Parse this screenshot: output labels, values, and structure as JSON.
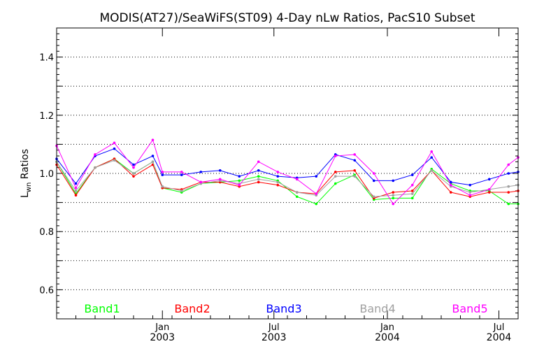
{
  "chart_data": {
    "type": "line",
    "title": "MODIS(AT27)/SeaWiFS(ST09) 4-Day nLw Ratios, PacS10 Subset",
    "ylabel_main": "L",
    "ylabel_sub": "wn",
    "ylabel_rest": " Ratios",
    "xlabel": "",
    "ylim": [
      0.5,
      1.5
    ],
    "yticks": [
      0.6,
      0.8,
      1.0,
      1.2,
      1.4
    ],
    "ytick_labels": [
      "0.6",
      "0.8",
      "1.0",
      "1.2",
      "1.4"
    ],
    "xlim": [
      0,
      24
    ],
    "xticks": [
      {
        "x": 5.5,
        "month": "Jan",
        "year": "2003"
      },
      {
        "x": 11.3,
        "month": "Jul",
        "year": "2003"
      },
      {
        "x": 17.2,
        "month": "Jan",
        "year": "2004"
      },
      {
        "x": 23.0,
        "month": "Jul",
        "year": "2004"
      }
    ],
    "grid": true,
    "legend_position": "bottom",
    "x": [
      0,
      1,
      2,
      3,
      4,
      5,
      5.5,
      6.5,
      7.5,
      8.5,
      9.5,
      10.5,
      11.5,
      12.5,
      13.5,
      14.5,
      15.5,
      16.5,
      17.5,
      18.5,
      19.5,
      20.5,
      21.5,
      22.5,
      23.5,
      24
    ],
    "series": [
      {
        "name": "Band1",
        "color": "#00ff00",
        "values": [
          1.04,
          0.93,
          1.02,
          1.05,
          1.0,
          1.04,
          0.95,
          0.935,
          0.965,
          0.97,
          0.975,
          0.99,
          0.975,
          0.92,
          0.895,
          0.965,
          0.995,
          0.91,
          0.915,
          0.915,
          1.015,
          0.965,
          0.94,
          0.94,
          0.895,
          0.895
        ]
      },
      {
        "name": "Band2",
        "color": "#ff0000",
        "values": [
          1.03,
          0.925,
          1.02,
          1.05,
          0.99,
          1.03,
          0.95,
          0.945,
          0.97,
          0.97,
          0.955,
          0.97,
          0.96,
          0.935,
          0.93,
          1.005,
          1.01,
          0.915,
          0.935,
          0.94,
          1.01,
          0.935,
          0.92,
          0.935,
          0.935,
          0.94
        ]
      },
      {
        "name": "Band3",
        "color": "#0000ff",
        "values": [
          1.05,
          0.965,
          1.06,
          1.085,
          1.03,
          1.06,
          0.995,
          0.995,
          1.005,
          1.01,
          0.99,
          1.01,
          0.99,
          0.985,
          0.99,
          1.065,
          1.045,
          0.975,
          0.975,
          0.995,
          1.055,
          0.97,
          0.96,
          0.98,
          1.0,
          1.005
        ]
      },
      {
        "name": "Band4",
        "color": "#a0a0a0",
        "values": [
          1.04,
          0.94,
          1.02,
          1.045,
          1.0,
          1.04,
          0.955,
          0.94,
          0.965,
          0.975,
          0.965,
          0.98,
          0.97,
          0.935,
          0.925,
          0.99,
          0.99,
          0.92,
          0.925,
          0.93,
          1.01,
          0.955,
          0.935,
          0.945,
          0.955,
          0.96
        ]
      },
      {
        "name": "Band5",
        "color": "#ff00ff",
        "values": [
          1.095,
          0.95,
          1.065,
          1.105,
          1.02,
          1.115,
          1.005,
          1.005,
          0.97,
          0.98,
          0.96,
          1.04,
          1.005,
          0.98,
          0.93,
          1.06,
          1.065,
          1.0,
          0.895,
          0.96,
          1.075,
          0.96,
          0.925,
          0.945,
          1.03,
          1.055
        ]
      }
    ]
  }
}
